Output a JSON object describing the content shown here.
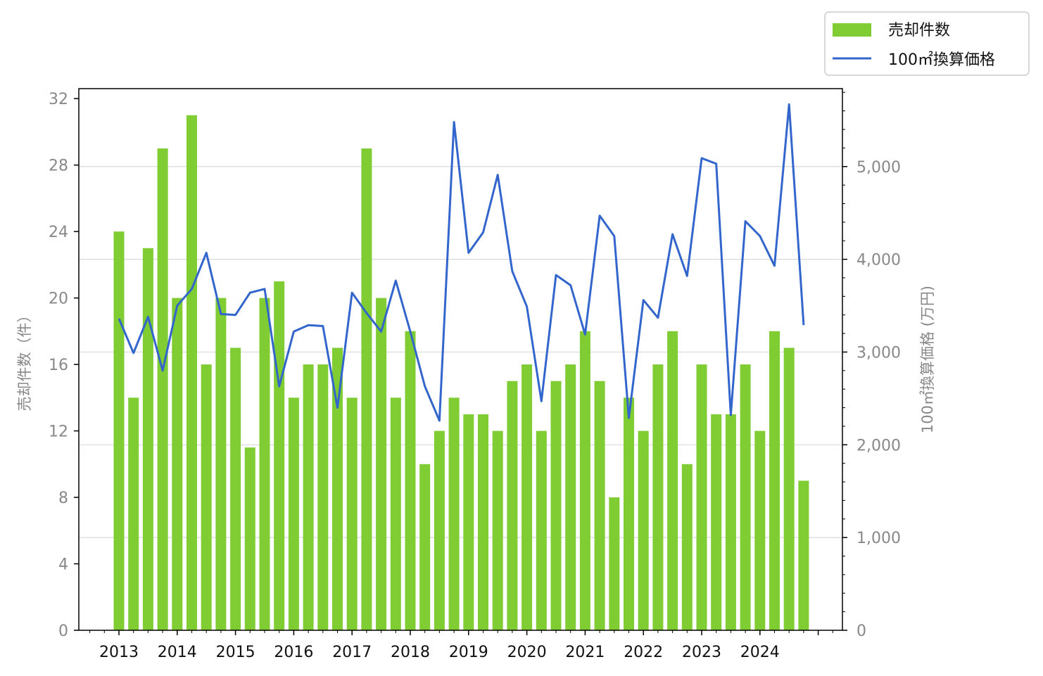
{
  "chart_data": {
    "type": "bar+line",
    "x_tick_labels": [
      "2013",
      "2014",
      "2015",
      "2016",
      "2017",
      "2018",
      "2019",
      "2020",
      "2021",
      "2022",
      "2023",
      "2024"
    ],
    "periods": [
      "2013Q1",
      "2013Q2",
      "2013Q3",
      "2013Q4",
      "2014Q1",
      "2014Q2",
      "2014Q3",
      "2014Q4",
      "2015Q1",
      "2015Q2",
      "2015Q3",
      "2015Q4",
      "2016Q1",
      "2016Q2",
      "2016Q3",
      "2016Q4",
      "2017Q1",
      "2017Q2",
      "2017Q3",
      "2017Q4",
      "2018Q1",
      "2018Q2",
      "2018Q3",
      "2018Q4",
      "2019Q1",
      "2019Q2",
      "2019Q3",
      "2019Q4",
      "2020Q1",
      "2020Q2",
      "2020Q3",
      "2020Q4",
      "2021Q1",
      "2021Q2",
      "2021Q3",
      "2021Q4",
      "2022Q1",
      "2022Q2",
      "2022Q3",
      "2022Q4",
      "2023Q1",
      "2023Q2",
      "2023Q3",
      "2023Q4",
      "2024Q1",
      "2024Q2",
      "2024Q3",
      "2024Q4"
    ],
    "series": [
      {
        "name": "売却件数",
        "type": "bar",
        "axis": "left",
        "color": "#7fcc33",
        "values": [
          24,
          14,
          23,
          29,
          20,
          31,
          16,
          20,
          17,
          11,
          20,
          21,
          14,
          16,
          16,
          17,
          14,
          29,
          20,
          14,
          18,
          10,
          12,
          14,
          13,
          13,
          12,
          15,
          16,
          12,
          15,
          16,
          18,
          15,
          8,
          14,
          12,
          16,
          18,
          10,
          16,
          13,
          13,
          16,
          12,
          18,
          17,
          9
        ]
      },
      {
        "name": "100㎡換算価格",
        "type": "line",
        "axis": "right",
        "color": "#3366cc",
        "values": [
          3360,
          2990,
          3380,
          2800,
          3500,
          3680,
          4070,
          3410,
          3400,
          3640,
          3680,
          2630,
          3220,
          3290,
          3280,
          2400,
          3640,
          3420,
          3220,
          3770,
          3220,
          2630,
          2260,
          5480,
          4070,
          4290,
          4910,
          3870,
          3490,
          2470,
          3830,
          3720,
          3190,
          4470,
          4250,
          2290,
          3560,
          3370,
          4270,
          3820,
          5090,
          5030,
          2320,
          4410,
          4250,
          3930,
          5670,
          3290
        ]
      }
    ],
    "y_left": {
      "label": "売却件数（件）",
      "min": 0,
      "max": 32.6,
      "ticks": [
        0,
        4,
        8,
        12,
        16,
        20,
        24,
        28,
        32
      ]
    },
    "y_right": {
      "label": "100㎡換算価格 (万円)",
      "min": 0,
      "max": 5840,
      "ticks": [
        0,
        1000,
        2000,
        3000,
        4000,
        5000
      ],
      "tick_labels": [
        "0",
        "1,000",
        "2,000",
        "3,000",
        "4,000",
        "5,000"
      ]
    },
    "grid": "horizontal at right-axis ticks",
    "legend": {
      "placement": "top-right, outside plot",
      "entries": [
        {
          "label": "売却件数",
          "kind": "bar",
          "color": "#7fcc33"
        },
        {
          "label": "100㎡換算価格",
          "kind": "line",
          "color": "#3366cc"
        }
      ]
    }
  }
}
